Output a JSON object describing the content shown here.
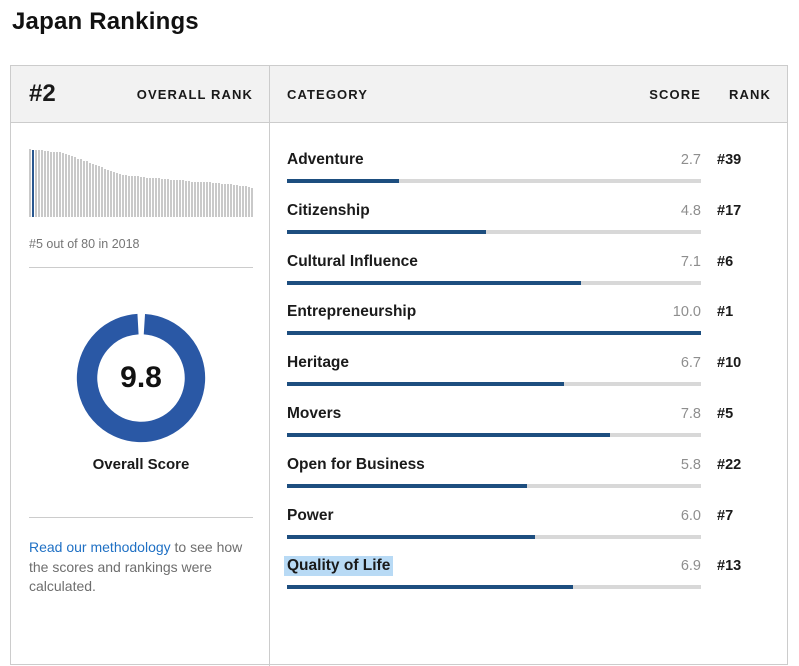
{
  "page_title": "Japan Rankings",
  "colors": {
    "accent_navy": "#1d4e7f",
    "donut_blue": "#2a58a5",
    "spark_highlight": "#27568f",
    "bar_track": "#d8d8d8",
    "header_bg": "#f2f2f2",
    "border": "#cccccc",
    "link_blue": "#1f70c4",
    "selection_highlight": "#b8daf5",
    "muted_text": "#757575"
  },
  "overall": {
    "rank_value": "#2",
    "rank_label": "OVERALL RANK",
    "position_caption": "#5 out of 80 in 2018",
    "score": "9.8",
    "score_value": 9.8,
    "score_max": 10,
    "score_label": "Overall Score"
  },
  "methodology": {
    "link_text": "Read our methodology",
    "rest_text": " to see how the scores and rankings were calculated."
  },
  "table": {
    "headers": {
      "category": "CATEGORY",
      "score": "SCORE",
      "rank": "RANK"
    },
    "score_max": 10,
    "rows": [
      {
        "category": "Adventure",
        "score": "2.7",
        "value": 2.7,
        "rank": "#39",
        "highlighted": false
      },
      {
        "category": "Citizenship",
        "score": "4.8",
        "value": 4.8,
        "rank": "#17",
        "highlighted": false
      },
      {
        "category": "Cultural Influence",
        "score": "7.1",
        "value": 7.1,
        "rank": "#6",
        "highlighted": false
      },
      {
        "category": "Entrepreneurship",
        "score": "10.0",
        "value": 10.0,
        "rank": "#1",
        "highlighted": false
      },
      {
        "category": "Heritage",
        "score": "6.7",
        "value": 6.7,
        "rank": "#10",
        "highlighted": false
      },
      {
        "category": "Movers",
        "score": "7.8",
        "value": 7.8,
        "rank": "#5",
        "highlighted": false
      },
      {
        "category": "Open for Business",
        "score": "5.8",
        "value": 5.8,
        "rank": "#22",
        "highlighted": false
      },
      {
        "category": "Power",
        "score": "6.0",
        "value": 6.0,
        "rank": "#7",
        "highlighted": false
      },
      {
        "category": "Quality of Life",
        "score": "6.9",
        "value": 6.9,
        "rank": "#13",
        "highlighted": true
      }
    ]
  },
  "chart_data": [
    {
      "type": "bar",
      "name": "rank-distribution-sparkline",
      "title": "#5 out of 80 in 2018",
      "ylim": [
        0,
        1
      ],
      "grid": false,
      "highlight_index": 1,
      "values": [
        1.0,
        0.99,
        0.99,
        0.98,
        0.98,
        0.97,
        0.97,
        0.96,
        0.96,
        0.95,
        0.95,
        0.94,
        0.92,
        0.91,
        0.89,
        0.88,
        0.86,
        0.85,
        0.83,
        0.82,
        0.8,
        0.78,
        0.76,
        0.75,
        0.73,
        0.71,
        0.69,
        0.68,
        0.66,
        0.65,
        0.63,
        0.62,
        0.62,
        0.61,
        0.61,
        0.6,
        0.6,
        0.59,
        0.59,
        0.58,
        0.58,
        0.58,
        0.57,
        0.57,
        0.56,
        0.56,
        0.56,
        0.55,
        0.55,
        0.54,
        0.54,
        0.54,
        0.53,
        0.53,
        0.52,
        0.52,
        0.52,
        0.52,
        0.51,
        0.51,
        0.51,
        0.5,
        0.5,
        0.5,
        0.49,
        0.49,
        0.48,
        0.48,
        0.47,
        0.47,
        0.46,
        0.45,
        0.45,
        0.44,
        0.43
      ]
    },
    {
      "type": "pie",
      "name": "overall-score-donut",
      "title": "Overall Score",
      "center_label": "9.8",
      "value": 9.8,
      "max": 10
    },
    {
      "type": "bar",
      "name": "category-scores",
      "categories": [
        "Adventure",
        "Citizenship",
        "Cultural Influence",
        "Entrepreneurship",
        "Heritage",
        "Movers",
        "Open for Business",
        "Power",
        "Quality of Life"
      ],
      "values": [
        2.7,
        4.8,
        7.1,
        10.0,
        6.7,
        7.8,
        5.8,
        6.0,
        6.9
      ],
      "ranks": [
        "#39",
        "#17",
        "#6",
        "#1",
        "#10",
        "#5",
        "#22",
        "#7",
        "#13"
      ],
      "xlim": [
        0,
        10
      ],
      "legend": "none"
    }
  ]
}
